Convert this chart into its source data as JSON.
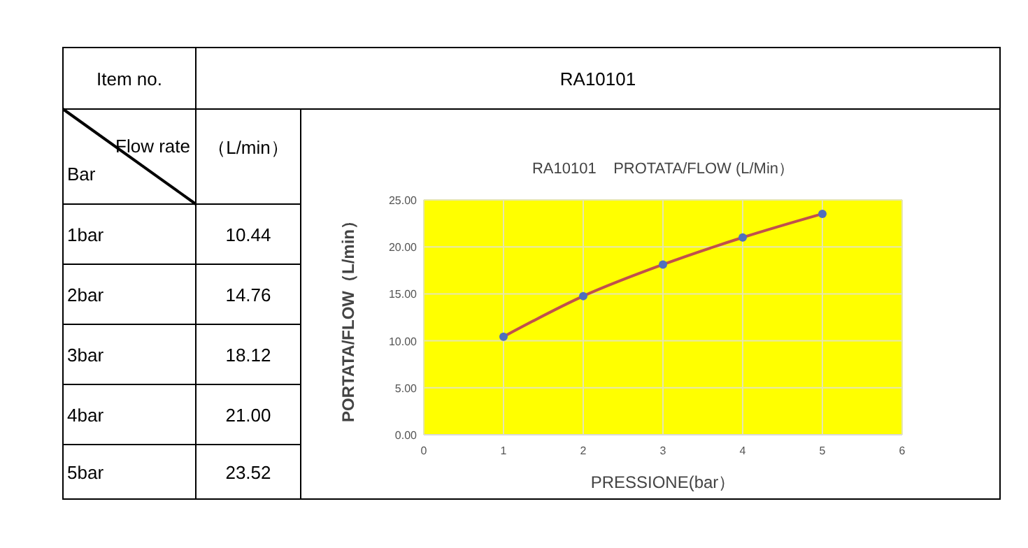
{
  "chart_data": {
    "type": "line",
    "title": "RA10101    PROTATA/FLOW (L/Min）",
    "xlabel": "PRESSIONE(bar）",
    "ylabel": "PORTATA/FLOW（L/min）",
    "x": [
      1,
      2,
      3,
      4,
      5
    ],
    "series": [
      {
        "color": "#c0504d",
        "values": [
          10.44,
          14.76,
          18.12,
          21.0,
          23.52
        ]
      }
    ],
    "xlim": [
      0,
      6
    ],
    "xticks": [
      0,
      1,
      2,
      3,
      4,
      5,
      6
    ],
    "ylim": [
      0,
      25
    ],
    "yticks": [
      {
        "value": 0,
        "label": "0.00"
      },
      {
        "value": 5,
        "label": "5.00"
      },
      {
        "value": 10,
        "label": "10.00"
      },
      {
        "value": 15,
        "label": "15.00"
      },
      {
        "value": 20,
        "label": "20.00"
      },
      {
        "value": 25,
        "label": "25.00"
      }
    ],
    "grid": true,
    "marker": "circle",
    "line_style": "solid",
    "annotations": [
      "Item no.",
      "RA10101",
      "Flow rate",
      "Bar",
      "（L/min）",
      "1bar",
      "2bar",
      "3bar",
      "4bar",
      "5bar",
      "10.44",
      "14.76",
      "18.12",
      "21.00",
      "23.52"
    ]
  }
}
